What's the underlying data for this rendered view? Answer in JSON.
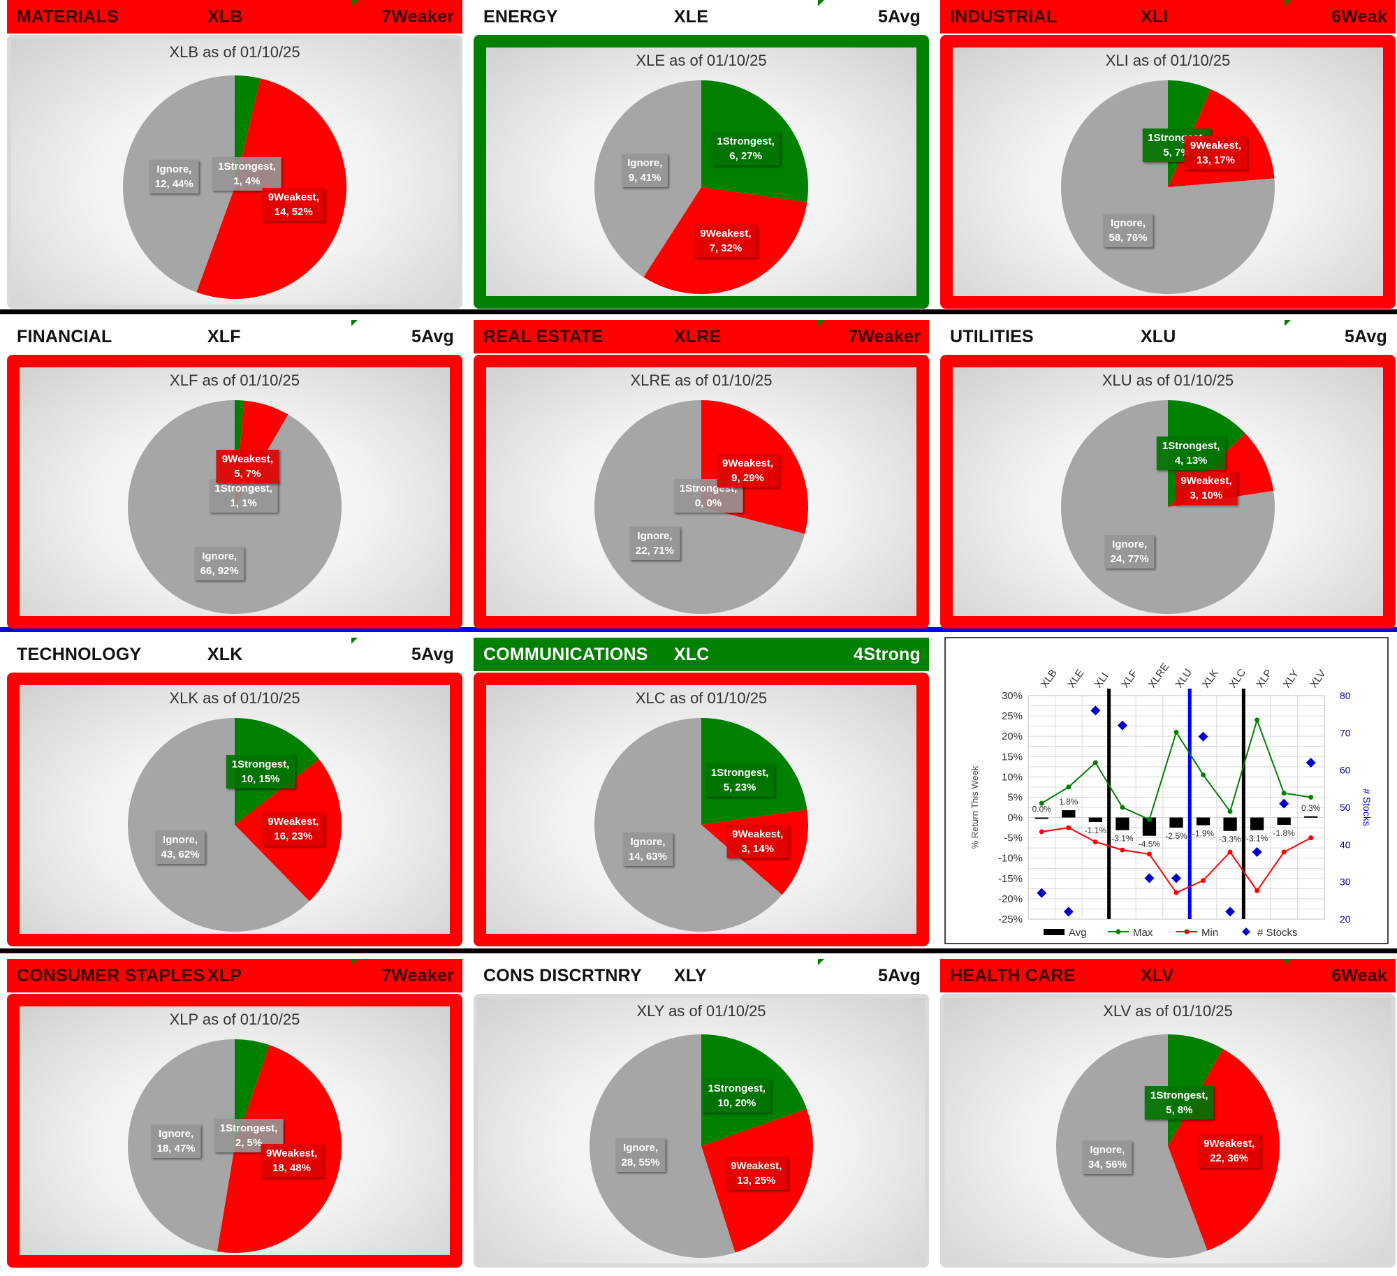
{
  "colors": {
    "strongest": "#008000",
    "weakest": "#ff0000",
    "ignore": "#a6a6a6",
    "border_red": "#ff0000",
    "border_green": "#008000"
  },
  "panels": [
    {
      "header": {
        "label": "MATERIALS",
        "ticker": "XLB",
        "rating": "7Weaker",
        "style": "red"
      },
      "frame": "plain",
      "chart_title": "XLB as of 01/10/25",
      "slices": [
        {
          "name": "1Strongest",
          "label": "1Strongest,",
          "value_label": "1, 4%",
          "value": 1
        },
        {
          "name": "9Weakest",
          "label": "9Weakest,",
          "value_label": "14, 52%",
          "value": 14
        },
        {
          "name": "Ignore",
          "label": "Ignore,",
          "value_label": "12, 44%",
          "value": 12
        }
      ]
    },
    {
      "header": {
        "label": "ENERGY",
        "ticker": "XLE",
        "rating": "5Avg",
        "style": "white"
      },
      "frame": "green",
      "chart_title": "XLE as of 01/10/25",
      "slices": [
        {
          "name": "1Strongest",
          "label": "1Strongest,",
          "value_label": "6, 27%",
          "value": 6
        },
        {
          "name": "9Weakest",
          "label": "9Weakest,",
          "value_label": "7, 32%",
          "value": 7
        },
        {
          "name": "Ignore",
          "label": "Ignore,",
          "value_label": "9, 41%",
          "value": 9
        }
      ]
    },
    {
      "header": {
        "label": "INDUSTRIAL",
        "ticker": "XLI",
        "rating": "6Weak",
        "style": "red"
      },
      "frame": "red",
      "chart_title": "XLI as of 01/10/25",
      "slices": [
        {
          "name": "1Strongest",
          "label": "1Strongest,",
          "value_label": "5, 7%",
          "value": 5
        },
        {
          "name": "9Weakest",
          "label": "9Weakest,",
          "value_label": "13, 17%",
          "value": 13
        },
        {
          "name": "Ignore",
          "label": "Ignore,",
          "value_label": "58, 76%",
          "value": 58
        }
      ]
    },
    {
      "header": {
        "label": "FINANCIAL",
        "ticker": "XLF",
        "rating": "5Avg",
        "style": "white"
      },
      "frame": "red",
      "chart_title": "XLF as of 01/10/25",
      "slices": [
        {
          "name": "1Strongest",
          "label": "1Strongest,",
          "value_label": "1, 1%",
          "value": 1
        },
        {
          "name": "9Weakest",
          "label": "9Weakest,",
          "value_label": "5, 7%",
          "value": 5
        },
        {
          "name": "Ignore",
          "label": "Ignore,",
          "value_label": "66, 92%",
          "value": 66
        }
      ]
    },
    {
      "header": {
        "label": "REAL ESTATE",
        "ticker": "XLRE",
        "rating": "7Weaker",
        "style": "red"
      },
      "frame": "red",
      "chart_title": "XLRE as of 01/10/25",
      "slices": [
        {
          "name": "1Strongest",
          "label": "1Strongest,",
          "value_label": "0, 0%",
          "value": 0
        },
        {
          "name": "9Weakest",
          "label": "9Weakest,",
          "value_label": "9, 29%",
          "value": 9
        },
        {
          "name": "Ignore",
          "label": "Ignore,",
          "value_label": "22, 71%",
          "value": 22
        }
      ]
    },
    {
      "header": {
        "label": "UTILITIES",
        "ticker": "XLU",
        "rating": "5Avg",
        "style": "white"
      },
      "frame": "red",
      "chart_title": "XLU as of 01/10/25",
      "slices": [
        {
          "name": "1Strongest",
          "label": "1Strongest,",
          "value_label": "4, 13%",
          "value": 4
        },
        {
          "name": "9Weakest",
          "label": "9Weakest,",
          "value_label": "3, 10%",
          "value": 3
        },
        {
          "name": "Ignore",
          "label": "Ignore,",
          "value_label": "24, 77%",
          "value": 24
        }
      ]
    },
    {
      "header": {
        "label": "TECHNOLOGY",
        "ticker": "XLK",
        "rating": "5Avg",
        "style": "white"
      },
      "frame": "red",
      "chart_title": "XLK as of 01/10/25",
      "slices": [
        {
          "name": "1Strongest",
          "label": "1Strongest,",
          "value_label": "10, 15%",
          "value": 10
        },
        {
          "name": "9Weakest",
          "label": "9Weakest,",
          "value_label": "16, 23%",
          "value": 16
        },
        {
          "name": "Ignore",
          "label": "Ignore,",
          "value_label": "43, 62%",
          "value": 43
        }
      ]
    },
    {
      "header": {
        "label": "COMMUNICATIONS",
        "ticker": "XLC",
        "rating": "4Strong",
        "style": "green"
      },
      "frame": "red",
      "chart_title": "XLC as of 01/10/25",
      "slices": [
        {
          "name": "1Strongest",
          "label": "1Strongest,",
          "value_label": "5, 23%",
          "value": 5
        },
        {
          "name": "9Weakest",
          "label": "9Weakest,",
          "value_label": "3, 14%",
          "value": 3
        },
        {
          "name": "Ignore",
          "label": "Ignore,",
          "value_label": "14, 63%",
          "value": 14
        }
      ]
    },
    {
      "header": {
        "label": "CONSUMER STAPLES",
        "ticker": "XLP",
        "rating": "7Weaker",
        "style": "red"
      },
      "frame": "red",
      "chart_title": "XLP as of 01/10/25",
      "slices": [
        {
          "name": "1Strongest",
          "label": "1Strongest,",
          "value_label": "2, 5%",
          "value": 2
        },
        {
          "name": "9Weakest",
          "label": "9Weakest,",
          "value_label": "18, 48%",
          "value": 18
        },
        {
          "name": "Ignore",
          "label": "Ignore,",
          "value_label": "18, 47%",
          "value": 18
        }
      ]
    },
    {
      "header": {
        "label": "CONS DISCRTNRY",
        "ticker": "XLY",
        "rating": "5Avg",
        "style": "white"
      },
      "frame": "plain",
      "chart_title": "XLY as of 01/10/25",
      "slices": [
        {
          "name": "1Strongest",
          "label": "1Strongest,",
          "value_label": "10, 20%",
          "value": 10
        },
        {
          "name": "9Weakest",
          "label": "9Weakest,",
          "value_label": "13, 25%",
          "value": 13
        },
        {
          "name": "Ignore",
          "label": "Ignore,",
          "value_label": "28, 55%",
          "value": 28
        }
      ]
    },
    {
      "header": {
        "label": "HEALTH CARE",
        "ticker": "XLV",
        "rating": "6Weak",
        "style": "red"
      },
      "frame": "plain",
      "chart_title": "XLV as of 01/10/25",
      "slices": [
        {
          "name": "1Strongest",
          "label": "1Strongest,",
          "value_label": "5, 8%",
          "value": 5
        },
        {
          "name": "9Weakest",
          "label": "9Weakest,",
          "value_label": "22, 36%",
          "value": 22
        },
        {
          "name": "Ignore",
          "label": "Ignore,",
          "value_label": "34, 56%",
          "value": 34
        }
      ]
    }
  ],
  "chart_data": {
    "type": "combo",
    "categories": [
      "XLB",
      "XLE",
      "XLI",
      "XLF",
      "XLRE",
      "XLU",
      "XLK",
      "XLC",
      "XLP",
      "XLY",
      "XLV"
    ],
    "ylabel": "% Return This Week",
    "y2label": "# Stocks",
    "ylim": [
      -25,
      30
    ],
    "y2lim": [
      20,
      80
    ],
    "y_ticks": [
      "30%",
      "25%",
      "20%",
      "15%",
      "10%",
      "5%",
      "0%",
      "-5%",
      "-10%",
      "-15%",
      "-20%",
      "-25%"
    ],
    "y2_ticks": [
      "80",
      "70",
      "60",
      "50",
      "40",
      "30",
      "20"
    ],
    "series": [
      {
        "name": "Avg",
        "type": "bar",
        "values": [
          0.0,
          1.8,
          -1.1,
          -3.1,
          -4.5,
          -2.5,
          -1.9,
          -3.3,
          -3.1,
          -1.8,
          0.3
        ],
        "data_labels": [
          "0.0%",
          "1.8%",
          "-1.1%",
          "-3.1%",
          "-4.5%",
          "-2.5%",
          "-1.9%",
          "-3.3%",
          "-3.1%",
          "-1.8%",
          "0.3%"
        ]
      },
      {
        "name": "Max",
        "type": "line",
        "values": [
          3.5,
          7.5,
          13.5,
          2.5,
          -0.5,
          21,
          10.5,
          1.5,
          24,
          6,
          5
        ]
      },
      {
        "name": "Min",
        "type": "line",
        "values": [
          -3.5,
          -2.5,
          -6,
          -8,
          -9,
          -18.5,
          -15.5,
          -8.5,
          -18,
          -8.5,
          -5
        ]
      },
      {
        "name": "# Stocks",
        "type": "scatter",
        "axis": "secondary",
        "values": [
          27,
          22,
          76,
          72,
          31,
          31,
          69,
          22,
          38,
          51,
          62
        ]
      }
    ],
    "vlines": [
      {
        "after": "XLI",
        "color": "#000000"
      },
      {
        "after": "XLU",
        "color": "#0000ff"
      },
      {
        "after": "XLC",
        "color": "#000000"
      }
    ],
    "legend": [
      "Avg",
      "Max",
      "Min",
      "# Stocks"
    ]
  }
}
